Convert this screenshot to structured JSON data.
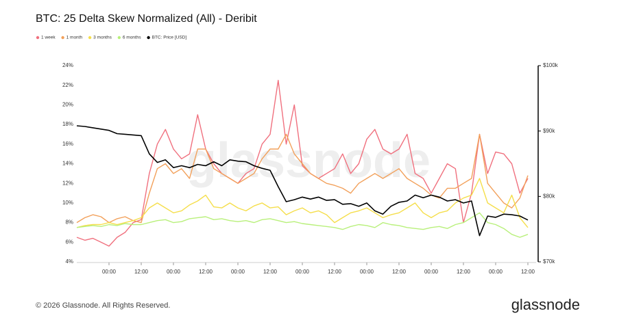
{
  "chart_data": {
    "type": "line",
    "title": "BTC: 25 Delta Skew Normalized (All) - Deribit",
    "categories": [
      null,
      null,
      null,
      null,
      "00:00",
      null,
      null,
      null,
      "12:00",
      null,
      null,
      null,
      "00:00",
      null,
      null,
      null,
      "12:00",
      null,
      null,
      null,
      "00:00",
      null,
      null,
      null,
      "12:00",
      null,
      null,
      null,
      "00:00",
      null,
      null,
      null,
      "12:00",
      null,
      null,
      null,
      "00:00",
      null,
      null,
      null,
      "12:00",
      null,
      null,
      null,
      "00:00",
      null,
      null,
      null,
      "12:00",
      null,
      null,
      null,
      "00:00",
      null,
      null,
      null,
      "12:00"
    ],
    "series": [
      {
        "name": "1 week",
        "color": "#f0707e",
        "values": [
          6.5,
          6.2,
          6.4,
          6,
          5.6,
          6.5,
          7,
          8,
          8.3,
          13,
          16,
          17.5,
          15.5,
          14.5,
          15,
          19,
          15.5,
          14,
          13,
          12.5,
          12,
          13,
          13.5,
          16,
          17,
          22.5,
          16,
          20,
          13.8,
          13,
          12.5,
          13,
          13.5,
          15,
          13,
          14,
          16.5,
          17.5,
          15.5,
          15,
          15.5,
          17,
          13,
          12.5,
          11,
          12.5,
          14,
          13.5,
          8,
          11,
          17,
          13,
          15.2,
          15,
          14,
          11,
          12.5
        ]
      },
      {
        "name": "1 month",
        "color": "#f2a05a",
        "values": [
          8,
          8.5,
          8.8,
          8.6,
          8,
          8.4,
          8.6,
          8.2,
          8,
          11,
          13.5,
          14,
          13,
          13.5,
          12.5,
          15.5,
          15.5,
          13.5,
          13,
          12.5,
          12,
          12.5,
          13,
          14.5,
          15.5,
          15.5,
          17,
          15,
          14,
          13,
          12.5,
          12,
          11.8,
          11.5,
          11,
          12,
          12.5,
          13,
          12.5,
          13,
          13.5,
          12.5,
          12,
          11.5,
          10.8,
          10.5,
          11.5,
          11.5,
          12,
          12.5,
          17,
          12,
          11,
          10,
          9.5,
          10.5,
          12.8
        ]
      },
      {
        "name": "3 months",
        "color": "#f5de4a",
        "values": [
          7.5,
          7.7,
          7.8,
          7.8,
          8,
          7.8,
          8,
          8.2,
          8.5,
          9.5,
          10,
          9.5,
          9,
          9.2,
          9.8,
          10.2,
          10.8,
          9.6,
          9.5,
          10,
          9.5,
          9.2,
          9.7,
          10,
          9.5,
          9.6,
          8.8,
          9.2,
          9.5,
          9,
          9.2,
          8.8,
          8,
          8.5,
          9,
          9.2,
          9.5,
          9,
          8.5,
          8.8,
          9,
          9.5,
          10,
          9,
          8.5,
          9,
          9.2,
          10,
          10.5,
          10.8,
          12.5,
          10,
          9.5,
          9,
          10.8,
          8.5,
          7.5
        ]
      },
      {
        "name": "6 months",
        "color": "#b8f07a",
        "values": [
          7.5,
          7.6,
          7.7,
          7.6,
          7.8,
          7.7,
          7.9,
          7.8,
          7.8,
          8,
          8.2,
          8.3,
          8,
          8.1,
          8.4,
          8.5,
          8.6,
          8.3,
          8.4,
          8.2,
          8.1,
          8.2,
          8,
          8.3,
          8.4,
          8.2,
          8,
          8.1,
          7.9,
          7.8,
          7.7,
          7.6,
          7.5,
          7.3,
          7.6,
          7.8,
          7.7,
          7.5,
          8,
          7.8,
          7.7,
          7.5,
          7.4,
          7.3,
          7.5,
          7.6,
          7.4,
          7.8,
          8,
          8.5,
          9,
          8,
          7.8,
          7.4,
          6.8,
          6.5,
          6.8
        ]
      },
      {
        "name": "BTC: Price [USD]",
        "color": "#000000",
        "axis": "y2",
        "values": [
          90800,
          90700,
          90500,
          90300,
          90100,
          89600,
          89500,
          89400,
          89300,
          86500,
          85200,
          85600,
          84400,
          84700,
          84400,
          84900,
          84700,
          85300,
          84700,
          85600,
          85400,
          85300,
          84700,
          84300,
          84000,
          81500,
          79200,
          79500,
          79900,
          79600,
          79900,
          79400,
          79500,
          78800,
          78900,
          78500,
          79000,
          77800,
          77300,
          78500,
          79100,
          79300,
          80200,
          79800,
          80200,
          79900,
          79300,
          79500,
          79000,
          79300,
          74000,
          77000,
          76800,
          77300,
          77200,
          77000,
          76400
        ]
      }
    ],
    "ylim": [
      4,
      24
    ],
    "yticks": [
      {
        "value": 4,
        "label": "4%"
      },
      {
        "value": 6,
        "label": "6%"
      },
      {
        "value": 8,
        "label": "8%"
      },
      {
        "value": 10,
        "label": "10%"
      },
      {
        "value": 12,
        "label": "12%"
      },
      {
        "value": 14,
        "label": "14%"
      },
      {
        "value": 16,
        "label": "16%"
      },
      {
        "value": 18,
        "label": "18%"
      },
      {
        "value": 20,
        "label": "20%"
      },
      {
        "value": 22,
        "label": "22%"
      },
      {
        "value": 24,
        "label": "24%"
      }
    ],
    "y2lim": [
      70000,
      100000
    ],
    "y2ticks": [
      {
        "value": 70000,
        "label": "$70k"
      },
      {
        "value": 80000,
        "label": "$80k"
      },
      {
        "value": 90000,
        "label": "$90k"
      },
      {
        "value": 100000,
        "label": "$100k"
      }
    ],
    "grid": false,
    "legend": "top-left",
    "watermark": "glassnode",
    "copyright": "© 2026 Glassnode. All Rights Reserved.",
    "brand": "glassnode"
  }
}
